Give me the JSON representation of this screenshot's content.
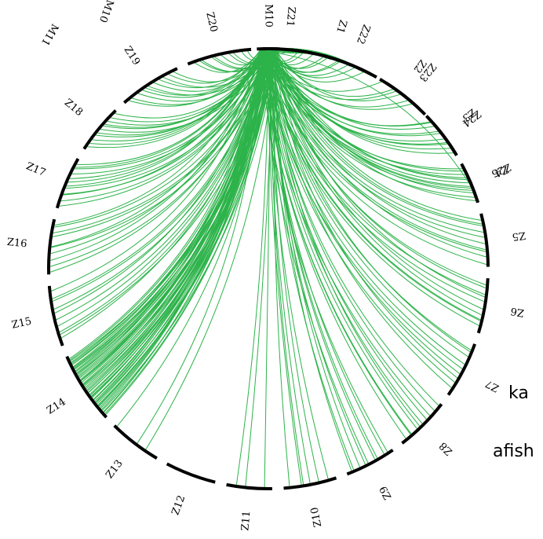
{
  "diagram": {
    "type": "circos-synteny",
    "chord_color": "#2db34a",
    "ring_color": "#000000",
    "source_chromosome": "M10",
    "chromosomes": [
      "M10",
      "Z1",
      "Z2",
      "Z3",
      "Z4",
      "Z5",
      "Z6",
      "Z7",
      "Z8",
      "Z9",
      "Z10",
      "Z11",
      "Z12",
      "Z13",
      "Z14",
      "Z15",
      "Z16",
      "Z17",
      "Z18",
      "Z19",
      "Z20",
      "Z21",
      "Z22",
      "Z23",
      "Z24",
      "Z25"
    ],
    "outer_labels": [
      "M11",
      "M10"
    ],
    "side_text": [
      "ka",
      "afish"
    ]
  }
}
